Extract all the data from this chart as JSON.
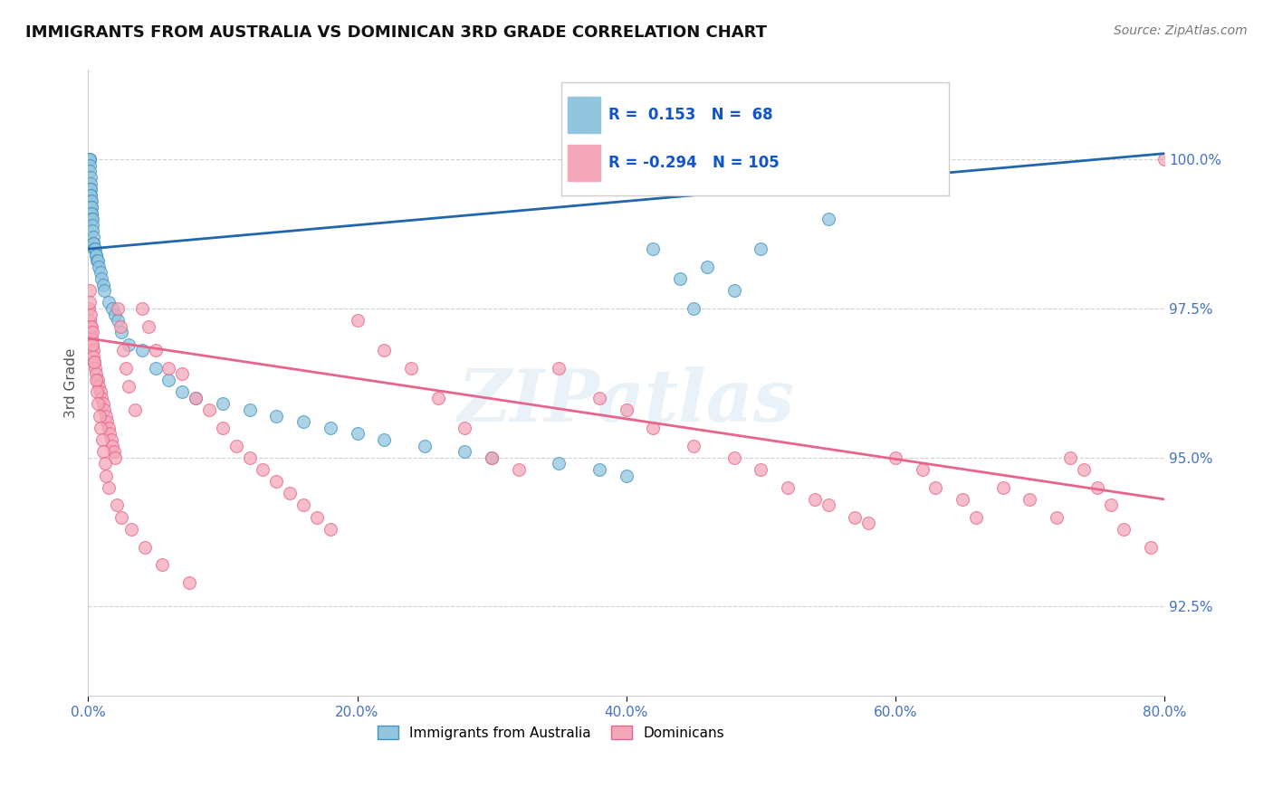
{
  "title": "IMMIGRANTS FROM AUSTRALIA VS DOMINICAN 3RD GRADE CORRELATION CHART",
  "source": "Source: ZipAtlas.com",
  "ylabel": "3rd Grade",
  "x_tick_labels": [
    "0.0%",
    "20.0%",
    "40.0%",
    "60.0%",
    "80.0%"
  ],
  "x_tick_values": [
    0.0,
    20.0,
    40.0,
    60.0,
    80.0
  ],
  "y_tick_labels": [
    "92.5%",
    "95.0%",
    "97.5%",
    "100.0%"
  ],
  "y_tick_values": [
    92.5,
    95.0,
    97.5,
    100.0
  ],
  "xlim": [
    0.0,
    80.0
  ],
  "ylim": [
    91.0,
    101.5
  ],
  "legend_labels": [
    "Immigrants from Australia",
    "Dominicans"
  ],
  "australia_R": 0.153,
  "australia_N": 68,
  "dominican_R": -0.294,
  "dominican_N": 105,
  "australia_color": "#92c5de",
  "dominican_color": "#f4a7b9",
  "australia_edge_color": "#4393c3",
  "dominican_edge_color": "#e8648a",
  "australia_trend_color": "#2166ac",
  "dominican_trend_color": "#e8648a",
  "watermark": "ZIPatlas",
  "background_color": "#ffffff",
  "aus_trend_x0": 0.0,
  "aus_trend_y0": 98.5,
  "aus_trend_x1": 80.0,
  "aus_trend_y1": 100.1,
  "dom_trend_x0": 0.0,
  "dom_trend_y0": 97.0,
  "dom_trend_x1": 80.0,
  "dom_trend_y1": 94.3,
  "australia_x": [
    0.05,
    0.08,
    0.1,
    0.12,
    0.13,
    0.14,
    0.15,
    0.16,
    0.17,
    0.18,
    0.19,
    0.2,
    0.21,
    0.22,
    0.23,
    0.24,
    0.25,
    0.26,
    0.27,
    0.28,
    0.3,
    0.32,
    0.35,
    0.38,
    0.4,
    0.45,
    0.5,
    0.55,
    0.6,
    0.65,
    0.7,
    0.8,
    0.9,
    1.0,
    1.1,
    1.2,
    1.5,
    1.8,
    2.0,
    2.2,
    2.5,
    3.0,
    4.0,
    5.0,
    6.0,
    7.0,
    8.0,
    10.0,
    12.0,
    14.0,
    16.0,
    18.0,
    20.0,
    22.0,
    25.0,
    28.0,
    30.0,
    35.0,
    38.0,
    40.0,
    42.0,
    44.0,
    45.0,
    46.0,
    48.0,
    50.0,
    55.0,
    60.0
  ],
  "australia_y": [
    100.0,
    100.0,
    100.0,
    100.0,
    99.9,
    99.8,
    99.7,
    99.6,
    99.5,
    99.5,
    99.4,
    99.4,
    99.3,
    99.3,
    99.2,
    99.2,
    99.1,
    99.1,
    99.0,
    99.0,
    98.9,
    98.8,
    98.7,
    98.6,
    98.6,
    98.5,
    98.5,
    98.4,
    98.4,
    98.3,
    98.3,
    98.2,
    98.1,
    98.0,
    97.9,
    97.8,
    97.6,
    97.5,
    97.4,
    97.3,
    97.1,
    96.9,
    96.8,
    96.5,
    96.3,
    96.1,
    96.0,
    95.9,
    95.8,
    95.7,
    95.6,
    95.5,
    95.4,
    95.3,
    95.2,
    95.1,
    95.0,
    94.9,
    94.8,
    94.7,
    98.5,
    98.0,
    97.5,
    98.2,
    97.8,
    98.5,
    99.0,
    99.5
  ],
  "dominican_x": [
    0.05,
    0.1,
    0.15,
    0.2,
    0.25,
    0.3,
    0.35,
    0.4,
    0.45,
    0.5,
    0.6,
    0.7,
    0.8,
    0.9,
    1.0,
    1.1,
    1.2,
    1.3,
    1.4,
    1.5,
    1.6,
    1.7,
    1.8,
    1.9,
    2.0,
    2.2,
    2.4,
    2.6,
    2.8,
    3.0,
    3.5,
    4.0,
    4.5,
    5.0,
    6.0,
    7.0,
    8.0,
    9.0,
    10.0,
    11.0,
    12.0,
    13.0,
    14.0,
    15.0,
    16.0,
    17.0,
    18.0,
    20.0,
    22.0,
    24.0,
    26.0,
    28.0,
    30.0,
    32.0,
    35.0,
    38.0,
    40.0,
    42.0,
    45.0,
    48.0,
    50.0,
    52.0,
    54.0,
    55.0,
    57.0,
    58.0,
    60.0,
    62.0,
    63.0,
    65.0,
    66.0,
    68.0,
    70.0,
    72.0,
    73.0,
    74.0,
    75.0,
    76.0,
    77.0,
    79.0,
    80.0,
    0.08,
    0.12,
    0.18,
    0.22,
    0.28,
    0.32,
    0.42,
    0.55,
    0.65,
    0.75,
    0.85,
    0.95,
    1.05,
    1.15,
    1.25,
    1.35,
    1.55,
    2.1,
    2.5,
    3.2,
    4.2,
    5.5,
    7.5
  ],
  "dominican_y": [
    97.5,
    97.3,
    97.2,
    97.1,
    97.0,
    96.9,
    96.8,
    96.7,
    96.6,
    96.5,
    96.4,
    96.3,
    96.2,
    96.1,
    96.0,
    95.9,
    95.8,
    95.7,
    95.6,
    95.5,
    95.4,
    95.3,
    95.2,
    95.1,
    95.0,
    97.5,
    97.2,
    96.8,
    96.5,
    96.2,
    95.8,
    97.5,
    97.2,
    96.8,
    96.5,
    96.4,
    96.0,
    95.8,
    95.5,
    95.2,
    95.0,
    94.8,
    94.6,
    94.4,
    94.2,
    94.0,
    93.8,
    97.3,
    96.8,
    96.5,
    96.0,
    95.5,
    95.0,
    94.8,
    96.5,
    96.0,
    95.8,
    95.5,
    95.2,
    95.0,
    94.8,
    94.5,
    94.3,
    94.2,
    94.0,
    93.9,
    95.0,
    94.8,
    94.5,
    94.3,
    94.0,
    94.5,
    94.3,
    94.0,
    95.0,
    94.8,
    94.5,
    94.2,
    93.8,
    93.5,
    100.0,
    97.8,
    97.6,
    97.4,
    97.2,
    97.1,
    96.9,
    96.6,
    96.3,
    96.1,
    95.9,
    95.7,
    95.5,
    95.3,
    95.1,
    94.9,
    94.7,
    94.5,
    94.2,
    94.0,
    93.8,
    93.5,
    93.2,
    92.9
  ]
}
